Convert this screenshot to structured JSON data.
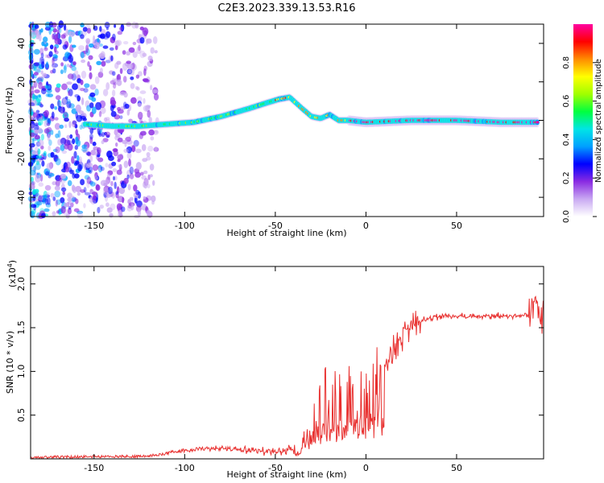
{
  "title": "C2E3.2023.339.13.53.R16",
  "chart_data": [
    {
      "type": "heatmap",
      "xlabel": "Height of straight line (km)",
      "ylabel": "Frequency (Hz)",
      "xlim": [
        -185,
        98
      ],
      "ylim": [
        -50,
        50
      ],
      "xticks": [
        -150,
        -100,
        -50,
        0,
        50
      ],
      "yticks": [
        -40,
        -20,
        0,
        20,
        40
      ],
      "colorbar": {
        "label": "Normalized spectral amplitude",
        "range": [
          0,
          1
        ],
        "ticks": [
          "0.0",
          "0.2",
          "0.4",
          "0.6",
          "0.8"
        ],
        "stops": [
          "#ffffff",
          "#c9a9f2",
          "#8a2be2",
          "#0000ff",
          "#00a0ff",
          "#00e5e5",
          "#00ff40",
          "#a0ff00",
          "#ffff00",
          "#ff8c00",
          "#ff0000",
          "#ff00a0"
        ]
      },
      "ridge": {
        "x": [
          -155,
          -140,
          -125,
          -110,
          -95,
          -80,
          -65,
          -55,
          -48,
          -42,
          -35,
          -30,
          -25,
          -20,
          -15,
          -10,
          0,
          25,
          50,
          75,
          95
        ],
        "y": [
          -2,
          -3,
          -3,
          -2,
          -1,
          2,
          6,
          9,
          11,
          12,
          6,
          2,
          1,
          3,
          0,
          0,
          -1,
          0,
          0,
          -1,
          -1
        ]
      },
      "noise_region_x": [
        -185,
        -125
      ]
    },
    {
      "type": "line",
      "xlabel": "Height of straight line (km)",
      "ylabel": "SNR (10 * v/v)",
      "yscale_label": "(x10",
      "yscale_exp": "4",
      "yscale_close": ")",
      "xlim": [
        -185,
        98
      ],
      "ylim": [
        0,
        2.2
      ],
      "xticks": [
        -150,
        -100,
        -50,
        0,
        50
      ],
      "yticks": [
        "0.5",
        "1.0",
        "1.5",
        "2.0"
      ],
      "color": "#e8302f",
      "envelope": {
        "x": [
          -185,
          -120,
          -100,
          -80,
          -60,
          -45,
          -38,
          -30,
          -22,
          -15,
          -10,
          -5,
          0,
          5,
          10,
          15,
          20,
          30,
          40,
          60,
          80,
          90,
          95,
          98
        ],
        "y": [
          0.02,
          0.03,
          0.1,
          0.12,
          0.09,
          0.08,
          0.15,
          0.45,
          0.8,
          0.75,
          0.9,
          0.85,
          0.9,
          0.95,
          1.05,
          1.25,
          1.45,
          1.58,
          1.63,
          1.63,
          1.63,
          1.65,
          1.7,
          1.62
        ]
      }
    }
  ]
}
